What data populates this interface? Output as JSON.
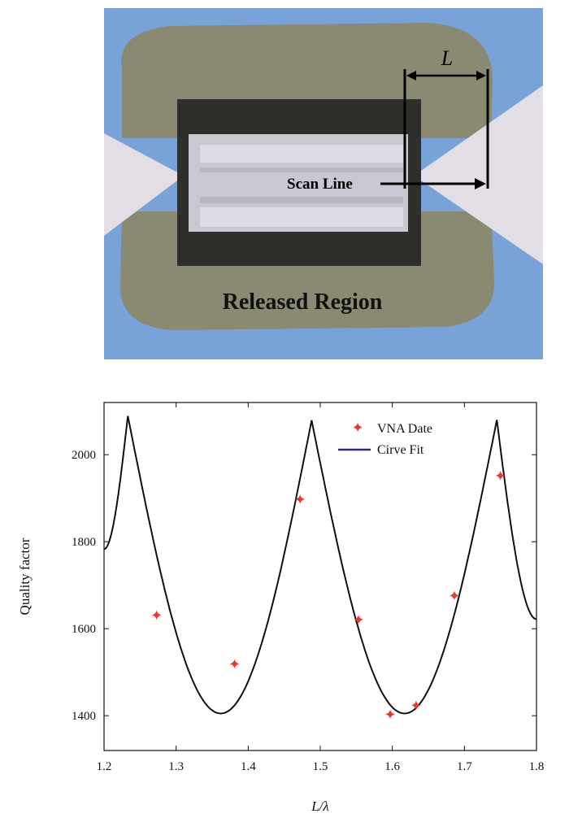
{
  "micrograph": {
    "length_label": "L",
    "scan_line_label": "Scan Line",
    "region_label": "Released Region",
    "colors": {
      "substrate": "#79a3d8",
      "metal": "#8a8a72",
      "contact": "#e3dde5",
      "trench": "#2e2e2a",
      "beam": "#dedbe6"
    }
  },
  "chart_data": {
    "type": "scatter",
    "xlabel": "L/λ",
    "ylabel": "Quality factor",
    "xlim": [
      1.2,
      1.8
    ],
    "ylim": [
      1320,
      2120
    ],
    "xticks": [
      "1.2",
      "1.3",
      "1.4",
      "1.5",
      "1.6",
      "1.7",
      "1.8"
    ],
    "yticks": [
      "1400",
      "1600",
      "1800",
      "2000"
    ],
    "legend_position": "top-right",
    "series": [
      {
        "name": "VNA Date",
        "kind": "markers",
        "color": "#e53935",
        "x": [
          1.273,
          1.381,
          1.472,
          1.553,
          1.597,
          1.633,
          1.686,
          1.75
        ],
        "y": [
          1630,
          1518,
          1897,
          1620,
          1402,
          1423,
          1675,
          1951
        ]
      },
      {
        "name": "Cirve Fit",
        "kind": "line",
        "color": "#2b2b7a",
        "x": [
          1.2,
          1.233,
          1.362,
          1.488,
          1.617,
          1.745,
          1.8
        ],
        "y": [
          1783,
          2089,
          1405,
          2079,
          1405,
          2080,
          1622
        ]
      }
    ]
  }
}
